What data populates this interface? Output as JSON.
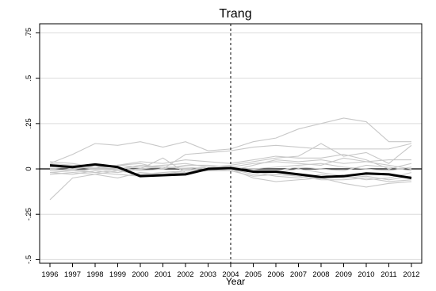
{
  "chart_data": {
    "type": "line",
    "title": "Trang",
    "xlabel": "Year",
    "ylabel": "",
    "x": [
      1996,
      1997,
      1998,
      1999,
      2000,
      2001,
      2002,
      2003,
      2004,
      2005,
      2006,
      2007,
      2008,
      2009,
      2010,
      2011,
      2012
    ],
    "x_tick_labels": [
      "1996",
      "1997",
      "1998",
      "1999",
      "2000",
      "2001",
      "2002",
      "2003",
      "2004",
      "2005",
      "2006",
      "2007",
      "2008",
      "2009",
      "2010",
      "2011",
      "2012"
    ],
    "y_ticks": [
      -0.5,
      -0.25,
      0,
      0.25,
      0.5,
      0.75
    ],
    "y_tick_labels": [
      "-.5",
      "-.25",
      "0",
      ".25",
      ".5",
      ".75"
    ],
    "ylim": [
      -0.52,
      0.8
    ],
    "xlim": [
      1996,
      2012
    ],
    "grid": "horizontal",
    "reference_line": {
      "x": 2004,
      "style": "dashed"
    },
    "colors": {
      "treated": "#000000",
      "donors": "#c8c8c8",
      "grid": "#dcdcdc"
    },
    "treated_series": {
      "values": [
        0.02,
        0.01,
        0.025,
        0.01,
        -0.04,
        -0.035,
        -0.03,
        0.0,
        0.005,
        -0.015,
        -0.015,
        -0.03,
        -0.045,
        -0.04,
        -0.025,
        -0.03,
        -0.05
      ]
    },
    "donor_series": [
      {
        "values": [
          0.03,
          0.08,
          0.14,
          0.13,
          0.15,
          0.12,
          0.15,
          0.1,
          0.11,
          0.15,
          0.17,
          0.22,
          0.25,
          0.28,
          0.26,
          0.15,
          0.15
        ]
      },
      {
        "values": [
          0.04,
          0.03,
          0.01,
          0.02,
          0.03,
          0.0,
          0.08,
          0.09,
          0.1,
          0.12,
          0.13,
          0.12,
          0.11,
          0.11,
          0.11,
          0.11,
          0.14
        ]
      },
      {
        "values": [
          -0.17,
          -0.05,
          -0.03,
          -0.01,
          0.0,
          0.01,
          0.0,
          0.01,
          0.02,
          0.04,
          0.06,
          0.07,
          0.14,
          0.07,
          0.09,
          0.03,
          0.13
        ]
      },
      {
        "values": [
          0.0,
          0.01,
          0.0,
          0.02,
          0.04,
          0.03,
          0.05,
          0.04,
          0.03,
          0.05,
          0.07,
          0.06,
          0.06,
          0.08,
          0.05,
          0.0,
          0.03
        ]
      },
      {
        "values": [
          -0.02,
          -0.03,
          -0.01,
          -0.02,
          0.0,
          0.06,
          -0.02,
          0.0,
          0.01,
          0.03,
          0.04,
          0.03,
          0.02,
          0.06,
          0.04,
          0.02,
          0.0
        ]
      },
      {
        "values": [
          0.02,
          0.0,
          -0.02,
          0.0,
          0.01,
          0.01,
          0.0,
          -0.01,
          0.0,
          -0.03,
          -0.02,
          0.0,
          -0.02,
          -0.04,
          -0.06,
          -0.05,
          -0.02
        ]
      },
      {
        "values": [
          -0.03,
          -0.02,
          -0.03,
          -0.05,
          -0.02,
          -0.03,
          -0.01,
          0.0,
          0.0,
          -0.05,
          -0.07,
          -0.06,
          -0.05,
          -0.08,
          -0.1,
          -0.08,
          -0.07
        ]
      },
      {
        "values": [
          0.01,
          0.02,
          0.02,
          0.01,
          -0.01,
          0.0,
          0.02,
          0.02,
          0.01,
          0.0,
          0.01,
          0.02,
          0.03,
          0.01,
          0.0,
          -0.01,
          0.01
        ]
      },
      {
        "values": [
          -0.01,
          0.0,
          0.01,
          -0.01,
          -0.03,
          -0.02,
          -0.01,
          0.01,
          0.0,
          -0.02,
          -0.04,
          -0.05,
          -0.03,
          -0.05,
          -0.04,
          -0.06,
          -0.04
        ]
      },
      {
        "values": [
          0.0,
          -0.01,
          0.0,
          0.0,
          0.02,
          0.01,
          0.01,
          0.0,
          -0.01,
          0.02,
          0.05,
          0.04,
          0.05,
          0.03,
          0.04,
          0.05,
          0.05
        ]
      },
      {
        "values": [
          0.03,
          0.02,
          0.01,
          0.02,
          0.01,
          0.02,
          0.03,
          0.01,
          0.0,
          -0.01,
          -0.01,
          0.01,
          0.0,
          -0.01,
          0.02,
          0.01,
          -0.01
        ]
      },
      {
        "values": [
          -0.02,
          -0.01,
          -0.02,
          -0.03,
          -0.04,
          -0.03,
          -0.02,
          -0.01,
          -0.01,
          -0.04,
          -0.03,
          -0.04,
          -0.06,
          -0.06,
          -0.05,
          -0.07,
          -0.06
        ]
      }
    ]
  }
}
